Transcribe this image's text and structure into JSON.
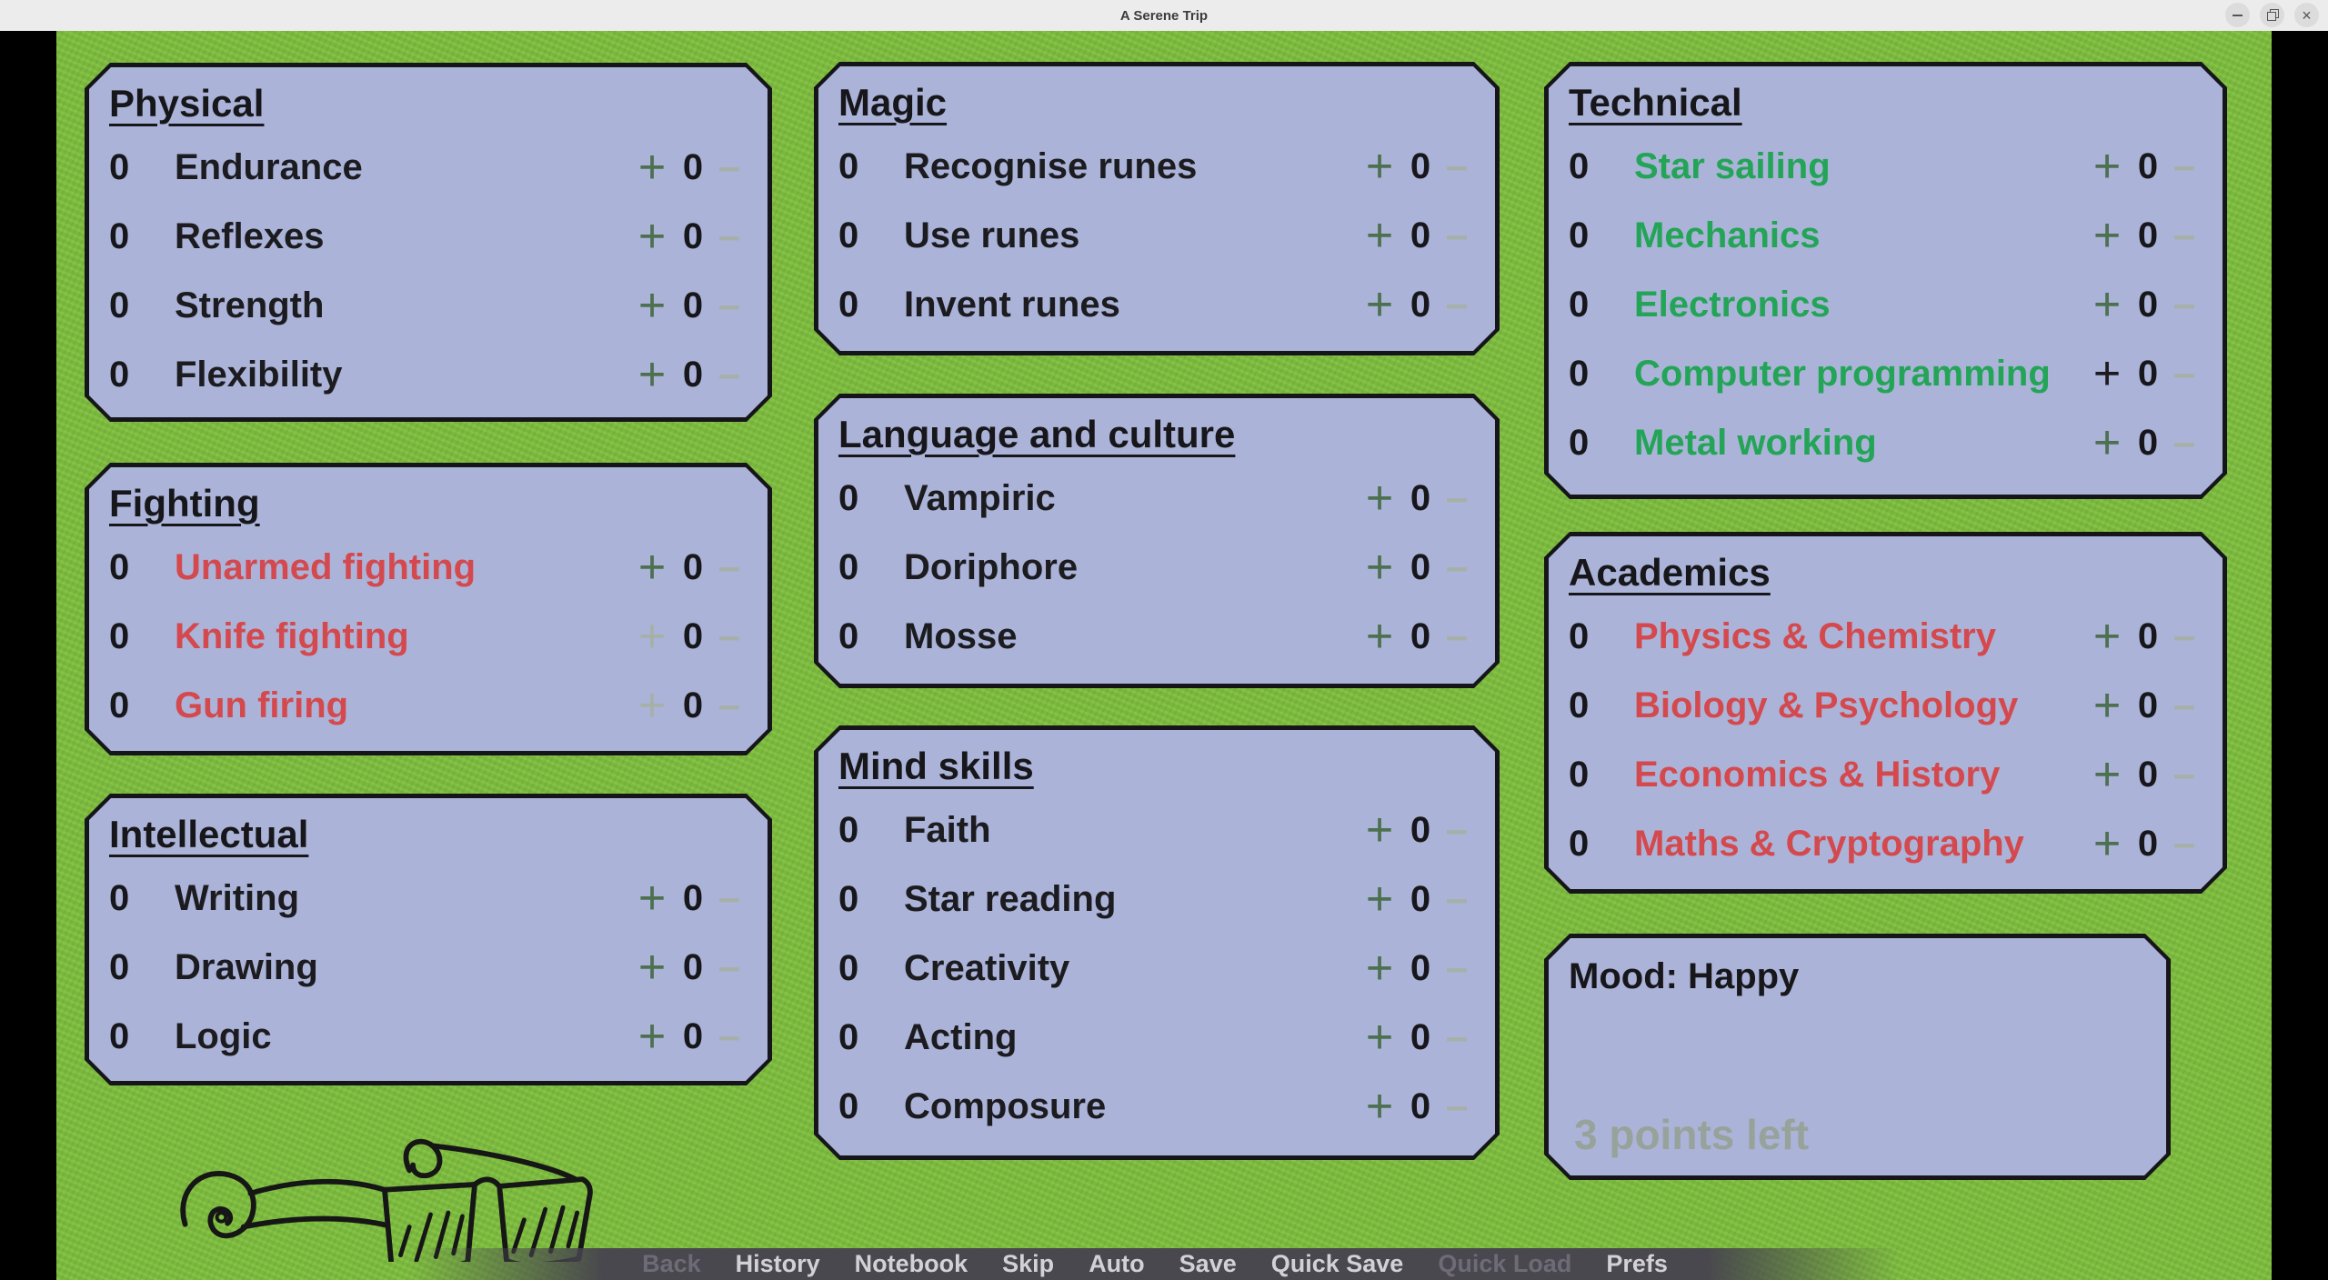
{
  "window": {
    "title": "A Serene Trip",
    "buttons": [
      "minimize-icon",
      "restore-icon",
      "close-icon"
    ]
  },
  "colors": {
    "background_green": "#7cba41",
    "panel_blue": "#abb4d8",
    "panel_border": "#15151a",
    "text_black": "#1c1c20",
    "skill_red": "#d4494e",
    "skill_green": "#24a457",
    "plus_enabled_green": "#4d7050",
    "control_disabled_gray": "#a6b0a8",
    "points_left_gray": "#97a29b",
    "quickbar_bg": "#47444e",
    "quickbar_text": "#d2d2d6",
    "quickbar_disabled": "#6e6b76"
  },
  "controls": {
    "plus_label": "+",
    "minus_label": "–"
  },
  "panels": [
    {
      "id": "physical",
      "title": "Physical",
      "skills": [
        {
          "value": "0",
          "name": "Endurance",
          "name_color": "default",
          "plus_state": "green",
          "counter": "0"
        },
        {
          "value": "0",
          "name": "Reflexes",
          "name_color": "default",
          "plus_state": "green",
          "counter": "0"
        },
        {
          "value": "0",
          "name": "Strength",
          "name_color": "default",
          "plus_state": "green",
          "counter": "0"
        },
        {
          "value": "0",
          "name": "Flexibility",
          "name_color": "default",
          "plus_state": "green",
          "counter": "0"
        }
      ]
    },
    {
      "id": "fighting",
      "title": "Fighting",
      "skills": [
        {
          "value": "0",
          "name": "Unarmed fighting",
          "name_color": "red",
          "plus_state": "green",
          "counter": "0"
        },
        {
          "value": "0",
          "name": "Knife fighting",
          "name_color": "red",
          "plus_state": "disabled",
          "counter": "0"
        },
        {
          "value": "0",
          "name": "Gun firing",
          "name_color": "red",
          "plus_state": "disabled",
          "counter": "0"
        }
      ]
    },
    {
      "id": "intellectual",
      "title": "Intellectual",
      "skills": [
        {
          "value": "0",
          "name": "Writing",
          "name_color": "default",
          "plus_state": "green",
          "counter": "0"
        },
        {
          "value": "0",
          "name": "Drawing",
          "name_color": "default",
          "plus_state": "green",
          "counter": "0"
        },
        {
          "value": "0",
          "name": "Logic",
          "name_color": "default",
          "plus_state": "green",
          "counter": "0"
        }
      ]
    },
    {
      "id": "magic",
      "title": "Magic",
      "skills": [
        {
          "value": "0",
          "name": "Recognise runes",
          "name_color": "default",
          "plus_state": "green",
          "counter": "0"
        },
        {
          "value": "0",
          "name": "Use runes",
          "name_color": "default",
          "plus_state": "green",
          "counter": "0"
        },
        {
          "value": "0",
          "name": "Invent runes",
          "name_color": "default",
          "plus_state": "green",
          "counter": "0"
        }
      ]
    },
    {
      "id": "language",
      "title": "Language and culture",
      "skills": [
        {
          "value": "0",
          "name": "Vampiric",
          "name_color": "default",
          "plus_state": "green",
          "counter": "0"
        },
        {
          "value": "0",
          "name": "Doriphore",
          "name_color": "default",
          "plus_state": "green",
          "counter": "0"
        },
        {
          "value": "0",
          "name": "Mosse",
          "name_color": "default",
          "plus_state": "green",
          "counter": "0"
        }
      ]
    },
    {
      "id": "mind",
      "title": "Mind skills",
      "skills": [
        {
          "value": "0",
          "name": "Faith",
          "name_color": "default",
          "plus_state": "green",
          "counter": "0"
        },
        {
          "value": "0",
          "name": "Star reading",
          "name_color": "default",
          "plus_state": "green",
          "counter": "0"
        },
        {
          "value": "0",
          "name": "Creativity",
          "name_color": "default",
          "plus_state": "green",
          "counter": "0"
        },
        {
          "value": "0",
          "name": "Acting",
          "name_color": "default",
          "plus_state": "green",
          "counter": "0"
        },
        {
          "value": "0",
          "name": "Composure",
          "name_color": "default",
          "plus_state": "green",
          "counter": "0"
        }
      ]
    },
    {
      "id": "technical",
      "title": "Technical",
      "skills": [
        {
          "value": "0",
          "name": "Star sailing",
          "name_color": "green",
          "plus_state": "green",
          "counter": "0"
        },
        {
          "value": "0",
          "name": "Mechanics",
          "name_color": "green",
          "plus_state": "green",
          "counter": "0"
        },
        {
          "value": "0",
          "name": "Electronics",
          "name_color": "green",
          "plus_state": "green",
          "counter": "0"
        },
        {
          "value": "0",
          "name": "Computer programming",
          "name_color": "green",
          "plus_state": "black",
          "counter": "0"
        },
        {
          "value": "0",
          "name": "Metal working",
          "name_color": "green",
          "plus_state": "green",
          "counter": "0"
        }
      ]
    },
    {
      "id": "academics",
      "title": "Academics",
      "skills": [
        {
          "value": "0",
          "name": "Physics & Chemistry",
          "name_color": "red",
          "plus_state": "green",
          "counter": "0"
        },
        {
          "value": "0",
          "name": "Biology & Psychology",
          "name_color": "red",
          "plus_state": "green",
          "counter": "0"
        },
        {
          "value": "0",
          "name": "Economics & History",
          "name_color": "red",
          "plus_state": "green",
          "counter": "0"
        },
        {
          "value": "0",
          "name": "Maths & Cryptography",
          "name_color": "red",
          "plus_state": "green",
          "counter": "0"
        }
      ]
    }
  ],
  "mood": {
    "title": "Mood: Happy",
    "points_left": "3 points left"
  },
  "quickmenu": {
    "items": [
      {
        "label": "Back",
        "enabled": false
      },
      {
        "label": "History",
        "enabled": true
      },
      {
        "label": "Notebook",
        "enabled": true
      },
      {
        "label": "Skip",
        "enabled": true
      },
      {
        "label": "Auto",
        "enabled": true
      },
      {
        "label": "Save",
        "enabled": true
      },
      {
        "label": "Quick Save",
        "enabled": true
      },
      {
        "label": "Quick Load",
        "enabled": false
      },
      {
        "label": "Prefs",
        "enabled": true
      }
    ]
  }
}
